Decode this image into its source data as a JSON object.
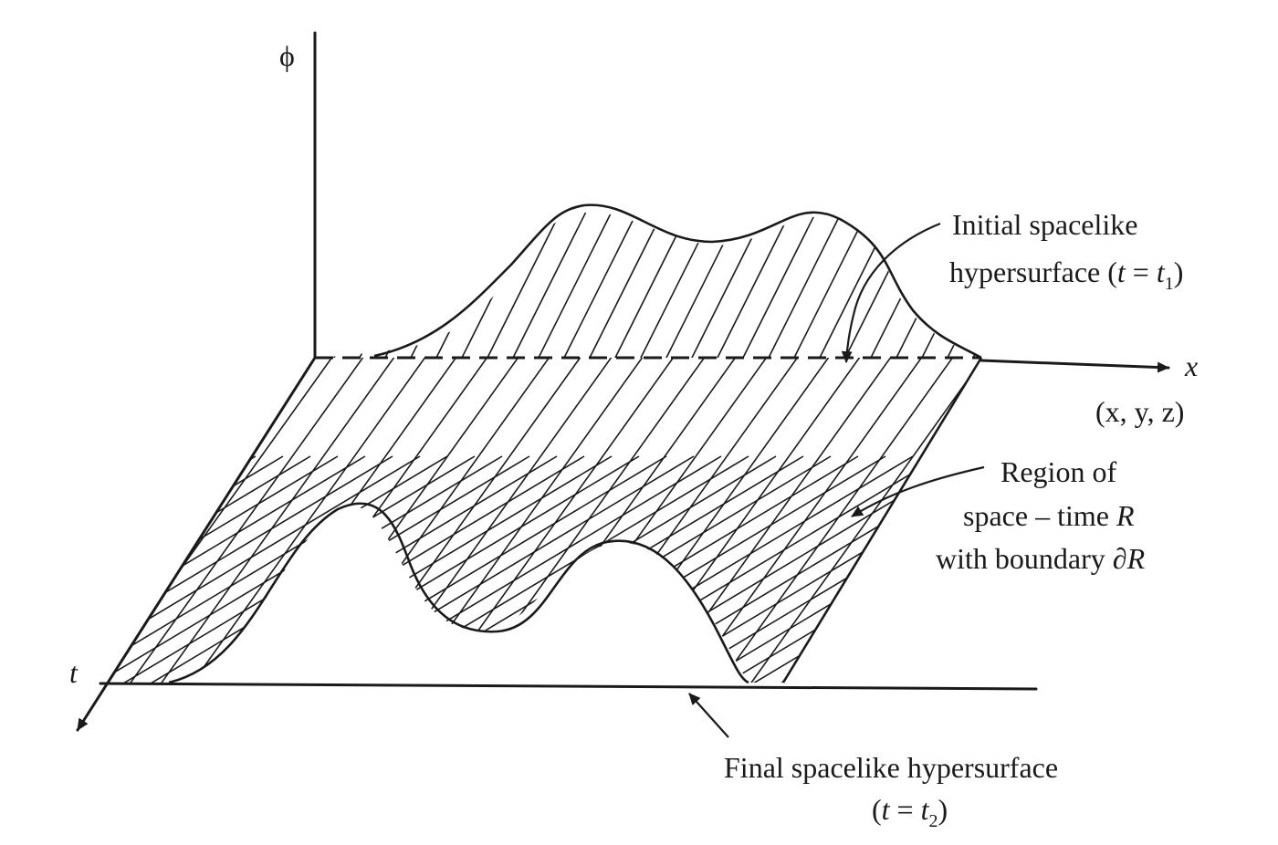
{
  "axes": {
    "phi": "ϕ",
    "x": "x",
    "t": "t",
    "xyz": "(x, y, z)"
  },
  "initial_surface": {
    "line1": "Initial spacelike",
    "line2_prefix": "hypersurface (",
    "line2_var": "t",
    "line2_eq": " = ",
    "line2_var2": "t",
    "line2_sub": "1",
    "line2_suffix": ")"
  },
  "region": {
    "line1": "Region of",
    "line2_prefix": "space – time ",
    "line2_var": "R",
    "line3_prefix": "with boundary ",
    "line3_var": "∂R"
  },
  "final_surface": {
    "line1": "Final spacelike hypersurface",
    "line2_prefix": "(",
    "line2_var": "t",
    "line2_eq": " = ",
    "line2_var2": "t",
    "line2_sub": "2",
    "line2_suffix": ")"
  },
  "colors": {
    "ink": "#1a1a1a",
    "paper": "#ffffff"
  },
  "icons": {
    "pointer": "curved-arrow-icon"
  }
}
